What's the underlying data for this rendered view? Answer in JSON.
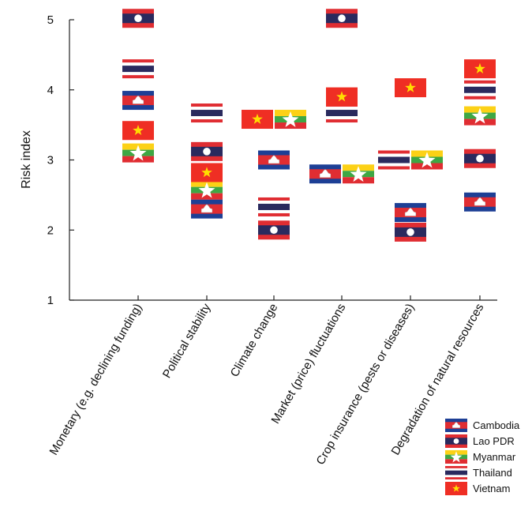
{
  "chart_data": {
    "type": "scatter",
    "ylabel": "Risk index",
    "ylim": [
      1,
      5
    ],
    "yticks": [
      "1",
      "2",
      "3",
      "4",
      "5"
    ],
    "categories": [
      "Monetary (e.g. declining funding)",
      "Political stability",
      "Climate change",
      "Market (price) fluctuations",
      "Crop insurance (pests or diseases)",
      "Degradation of natural resources"
    ],
    "series": [
      {
        "name": "Cambodia",
        "flag": "cambodia",
        "values": [
          3.85,
          2.3,
          3.0,
          2.8,
          2.25,
          2.4
        ]
      },
      {
        "name": "Lao PDR",
        "flag": "laos",
        "values": [
          5.02,
          3.12,
          2.0,
          5.02,
          1.97,
          3.02
        ]
      },
      {
        "name": "Myanmar",
        "flag": "myanmar",
        "values": [
          3.1,
          2.57,
          3.58,
          2.8,
          3.0,
          3.63
        ]
      },
      {
        "name": "Thailand",
        "flag": "thailand",
        "values": [
          4.3,
          3.67,
          2.33,
          3.67,
          3.0,
          4.0
        ]
      },
      {
        "name": "Vietnam",
        "flag": "vietnam",
        "values": [
          3.42,
          2.82,
          3.58,
          3.9,
          4.03,
          4.3
        ]
      }
    ],
    "legend_position": "bottom-right",
    "grid": false,
    "colors": {
      "blue": "#1d3f95",
      "red": "#e02d32",
      "navy": "#2a2a5e",
      "yellow": "#fcd116",
      "green": "#3ea744",
      "white": "#ffffff",
      "vn_red": "#ef2e24",
      "vn_star": "#ffde00"
    }
  }
}
